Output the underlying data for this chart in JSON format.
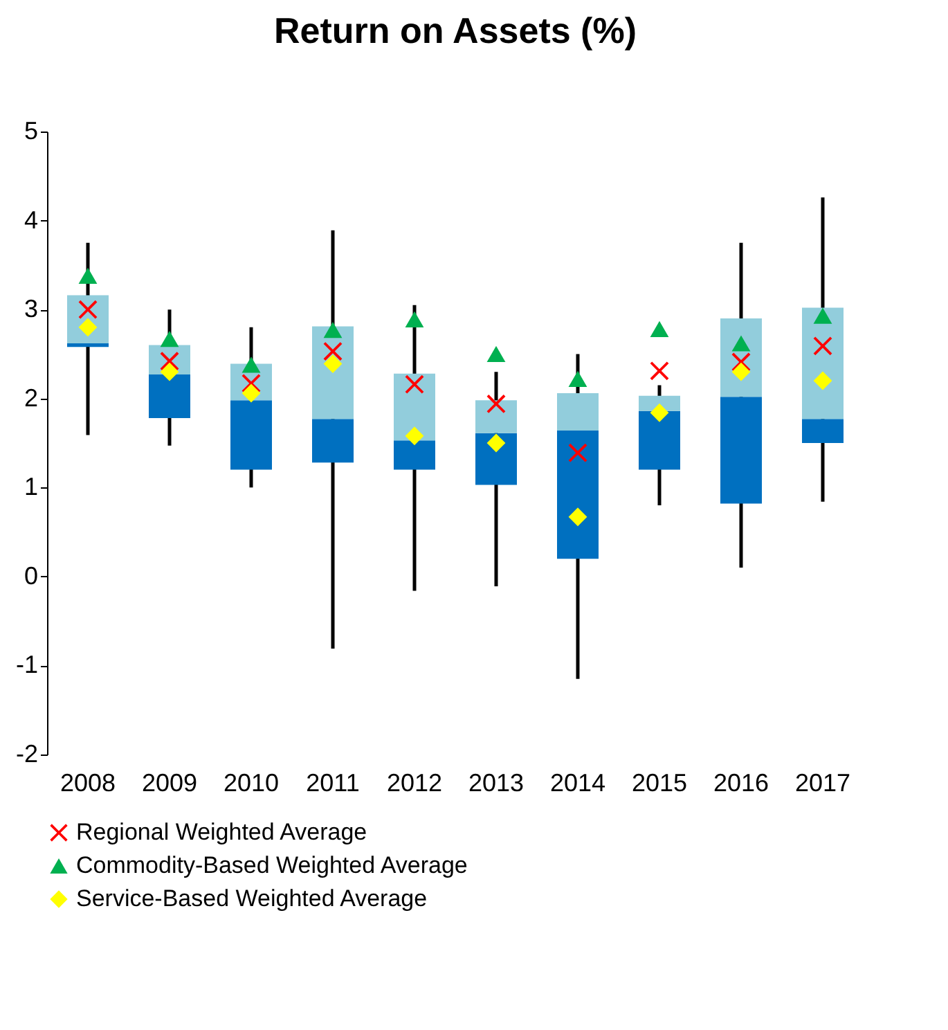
{
  "chart_data": {
    "type": "box",
    "title": "Return on Assets (%)",
    "categories": [
      "2008",
      "2009",
      "2010",
      "2011",
      "2012",
      "2013",
      "2014",
      "2015",
      "2016",
      "2017"
    ],
    "color": "#92cddc",
    "colors": [
      "#0070c0",
      "#0070c0",
      "#0070c0",
      "#0070c0",
      "#0070c0",
      "#0070c0",
      "#0070c0",
      "#0070c0",
      "#0070c0",
      "#0070c0"
    ],
    "boxes": [
      {
        "low": 1.59,
        "q1": 2.58,
        "median": 2.62,
        "q3": 3.16,
        "high": 3.75
      },
      {
        "low": 1.47,
        "q1": 1.78,
        "median": 2.27,
        "q3": 2.6,
        "high": 3.0
      },
      {
        "low": 1.0,
        "q1": 1.2,
        "median": 1.98,
        "q3": 2.39,
        "high": 2.8
      },
      {
        "low": -0.81,
        "q1": 1.28,
        "median": 1.77,
        "q3": 2.81,
        "high": 3.89
      },
      {
        "low": -0.16,
        "q1": 1.2,
        "median": 1.53,
        "q3": 2.28,
        "high": 3.05
      },
      {
        "low": -0.11,
        "q1": 1.03,
        "median": 1.61,
        "q3": 1.98,
        "high": 2.3
      },
      {
        "low": -1.15,
        "q1": 0.2,
        "median": 1.64,
        "q3": 2.06,
        "high": 2.5
      },
      {
        "low": 0.8,
        "q1": 1.2,
        "median": 1.86,
        "q3": 2.03,
        "high": 2.15
      },
      {
        "low": 0.1,
        "q1": 0.82,
        "median": 2.02,
        "q3": 2.9,
        "high": 3.75
      },
      {
        "low": 0.84,
        "q1": 1.5,
        "median": 1.77,
        "q3": 3.02,
        "high": 4.26
      }
    ],
    "series": [
      {
        "name": "Regional Weighted Average",
        "type": "scatter",
        "marker": "cross",
        "color": "#ff0000",
        "values": [
          3.0,
          2.42,
          2.17,
          2.53,
          2.16,
          1.94,
          1.39,
          2.31,
          2.41,
          2.59
        ]
      },
      {
        "name": "Commodity-Based Weighted  Average",
        "type": "scatter",
        "marker": "triangle",
        "color": "#00b050",
        "values": [
          3.38,
          2.67,
          2.38,
          2.77,
          2.89,
          2.5,
          2.22,
          2.78,
          2.62,
          2.93
        ]
      },
      {
        "name": "Service-Based Weighted Average",
        "type": "scatter",
        "marker": "diamond",
        "color": "#ffff00",
        "values": [
          2.8,
          2.3,
          2.06,
          2.39,
          1.58,
          1.5,
          0.67,
          1.84,
          2.3,
          2.2
        ]
      }
    ],
    "ylim": [
      -2,
      5
    ],
    "yticks": [
      -2,
      -1,
      0,
      1,
      2,
      3,
      4,
      5
    ],
    "grid": false,
    "legend": "bottom"
  }
}
